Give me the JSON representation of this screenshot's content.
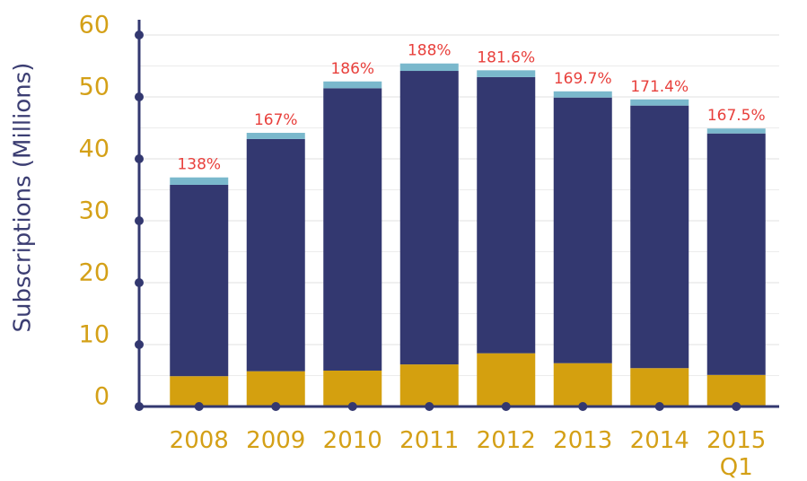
{
  "chart_data": {
    "type": "stacked_bar",
    "y_label": "Subscriptions (Millions)",
    "categories": [
      "2008",
      "2009",
      "2010",
      "2011",
      "2012",
      "2013",
      "2014",
      "2015 Q1"
    ],
    "series": [
      {
        "color": "#d4a00f",
        "values": [
          4.9,
          5.7,
          5.8,
          6.8,
          8.6,
          7.0,
          6.2,
          5.1
        ]
      },
      {
        "color": "#333870",
        "values": [
          30.9,
          37.5,
          45.6,
          47.4,
          44.6,
          42.9,
          42.4,
          39.0
        ]
      },
      {
        "color": "#7ab8cc",
        "values": [
          1.2,
          1.0,
          1.1,
          1.2,
          1.1,
          1.0,
          1.0,
          0.8
        ]
      }
    ],
    "annotations": [
      "138%",
      "167%",
      "186%",
      "188%",
      "181.6%",
      "169.7%",
      "171.4%",
      "167.5%"
    ],
    "ylim": [
      0,
      60
    ],
    "yticks": [
      0,
      10,
      20,
      30,
      40,
      50,
      60
    ],
    "minor_yticks": [
      5,
      15,
      25,
      35,
      45,
      55
    ],
    "grid": true
  }
}
